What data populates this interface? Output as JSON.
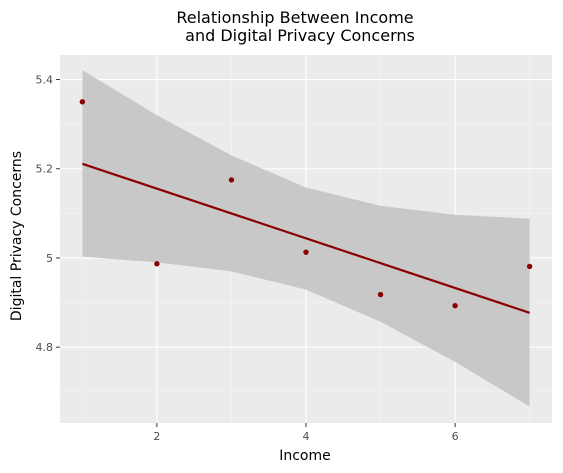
{
  "chart_data": {
    "type": "scatter",
    "title_lines": [
      "Relationship Between Income",
      "and Digital Privacy Concerns"
    ],
    "xlabel": "Income",
    "ylabel": "Digital Privacy Concerns",
    "xlim": [
      0.7,
      7.3
    ],
    "ylim": [
      4.63,
      5.455
    ],
    "x_ticks": [
      2,
      4,
      6
    ],
    "x_tick_labels": [
      "2",
      "4",
      "6"
    ],
    "y_ticks": [
      4.8,
      5.0,
      5.2,
      5.4
    ],
    "y_tick_labels": [
      "4.8",
      "5",
      "5.2",
      "5.4"
    ],
    "grid": true,
    "points": [
      {
        "x": 1,
        "y": 5.35
      },
      {
        "x": 2,
        "y": 4.987
      },
      {
        "x": 3,
        "y": 5.175
      },
      {
        "x": 4,
        "y": 5.013
      },
      {
        "x": 5,
        "y": 4.918
      },
      {
        "x": 6,
        "y": 4.893
      },
      {
        "x": 7,
        "y": 4.981
      }
    ],
    "trend_line": {
      "x": [
        1,
        7
      ],
      "y": [
        5.211,
        4.877
      ]
    },
    "confidence_band": {
      "x": [
        1,
        2,
        3,
        4,
        5,
        6,
        7
      ],
      "upper": [
        5.421,
        5.32,
        5.23,
        5.158,
        5.117,
        5.097,
        5.088
      ],
      "lower": [
        5.003,
        4.99,
        4.97,
        4.929,
        4.857,
        4.767,
        4.667
      ]
    },
    "colors": {
      "panel": "#ebebeb",
      "grid_major": "#ffffff",
      "grid_minor": "#f5f5f5",
      "band": "#c8c8c8",
      "point": "#8b0000",
      "line": "#8b0000"
    }
  }
}
